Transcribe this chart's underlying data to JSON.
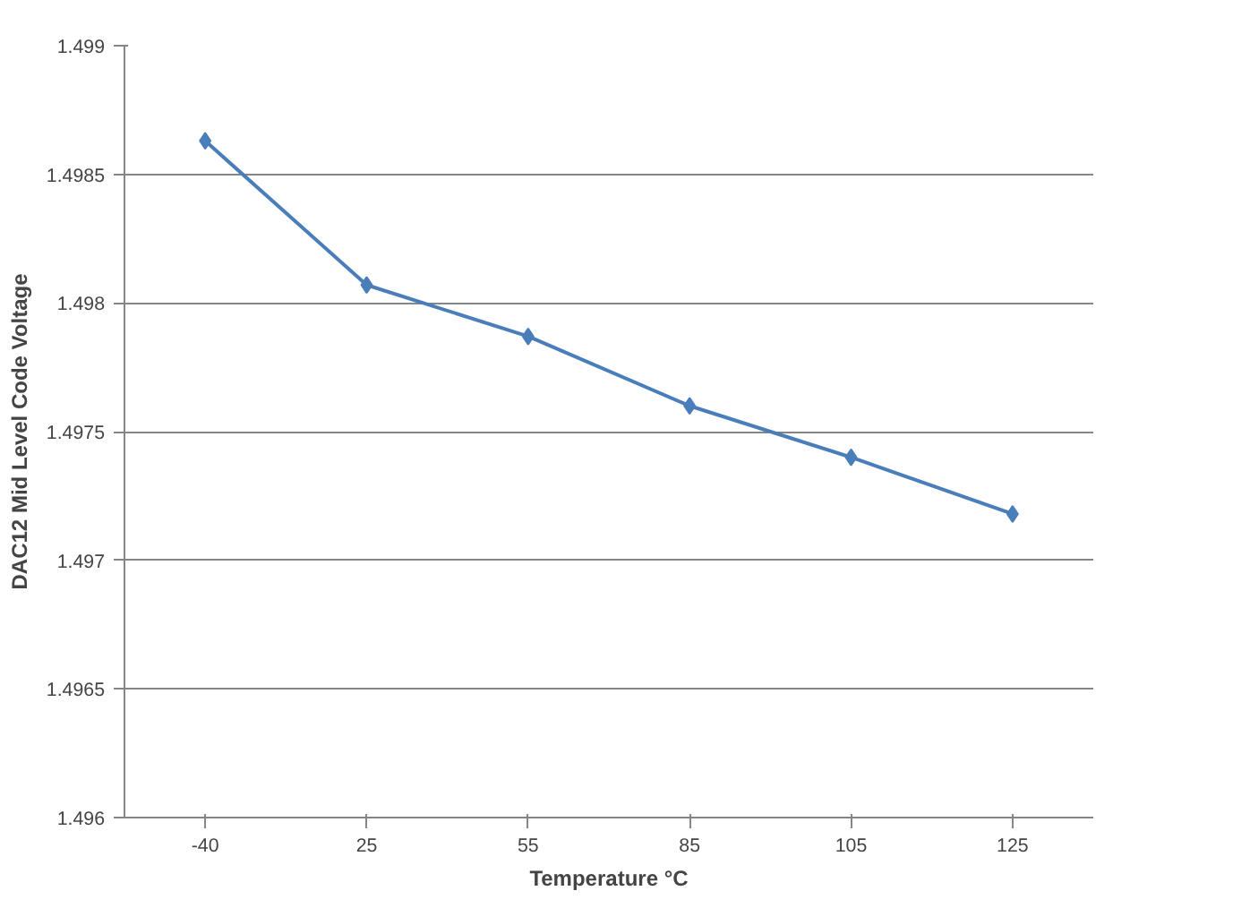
{
  "chart_data": {
    "type": "line",
    "xlabel": "Temperature °C",
    "ylabel": "DAC12 Mid Level Code Voltage",
    "categories": [
      "-40",
      "25",
      "55",
      "85",
      "105",
      "125"
    ],
    "series": [
      {
        "color": "#4a7ebb",
        "values": [
          1.49863,
          1.49807,
          1.49787,
          1.4976,
          1.4974,
          1.49718
        ]
      }
    ],
    "ylim": [
      1.496,
      1.499
    ],
    "yticks": [
      1.496,
      1.4965,
      1.497,
      1.4975,
      1.498,
      1.4985,
      1.499
    ],
    "grid": "y",
    "marker": "diamond",
    "line_style": "solid"
  }
}
